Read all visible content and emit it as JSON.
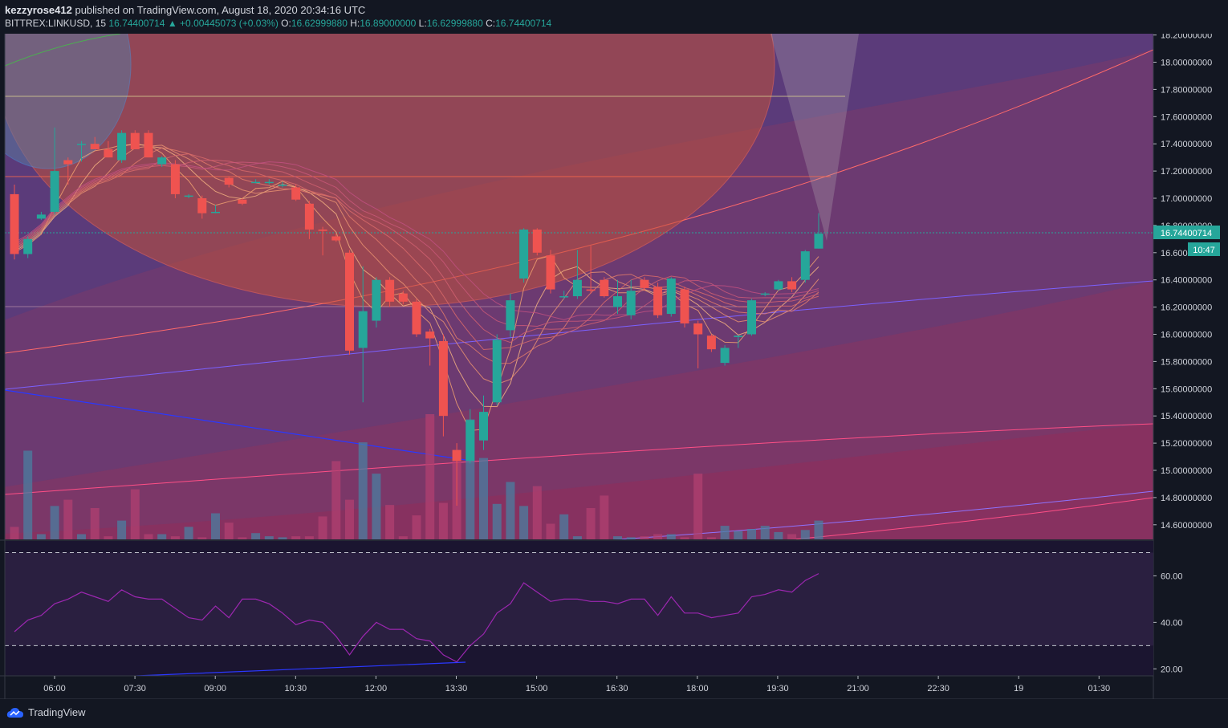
{
  "header": {
    "author": "kezzyrose412",
    "published": "published on TradingView.com, August 18, 2020 20:34:16 UTC",
    "symbol": "BITTREX:LINKUSD, 15",
    "last": "16.74400714",
    "change": "+0.00445073 (+0.03%)",
    "ohlc": {
      "o_label": "O:",
      "o": "16.62999880",
      "h_label": "H:",
      "h": "16.89000000",
      "l_label": "L:",
      "l": "16.62999880",
      "c_label": "C:",
      "c": "16.74400714"
    }
  },
  "footer": {
    "brand": "TradingView"
  },
  "colors": {
    "up": "#26a69a",
    "down": "#ef5350",
    "rsi": "#9c27b0",
    "background": "#131722"
  },
  "chart_data": [
    {
      "type": "candlestick",
      "price_axis": [
        "18.20000000",
        "18.00000000",
        "17.80000000",
        "17.60000000",
        "17.40000000",
        "17.20000000",
        "17.00000000",
        "16.80000000",
        "16.60000000",
        "16.40000000",
        "16.20000000",
        "16.00000000",
        "15.80000000",
        "15.60000000",
        "15.40000000",
        "15.20000000",
        "15.00000000",
        "14.80000000",
        "14.60000000"
      ],
      "time_axis": [
        "06:00",
        "07:30",
        "09:00",
        "10:30",
        "12:00",
        "13:30",
        "15:00",
        "16:30",
        "18:00",
        "19:30",
        "21:00",
        "22:30",
        "19",
        "01:30"
      ],
      "last_price_label": "16.74400714",
      "countdown_label": "10:47",
      "candles": [
        {
          "o": 17.03,
          "h": 17.1,
          "l": 16.55,
          "c": 16.59
        },
        {
          "o": 16.59,
          "h": 16.72,
          "l": 16.56,
          "c": 16.7
        },
        {
          "o": 16.85,
          "h": 16.9,
          "l": 16.84,
          "c": 16.88
        },
        {
          "o": 16.9,
          "h": 17.52,
          "l": 16.88,
          "c": 17.2
        },
        {
          "o": 17.28,
          "h": 17.3,
          "l": 17.1,
          "c": 17.25
        },
        {
          "o": 17.4,
          "h": 17.42,
          "l": 17.27,
          "c": 17.4
        },
        {
          "o": 17.4,
          "h": 17.45,
          "l": 17.38,
          "c": 17.36
        },
        {
          "o": 17.36,
          "h": 17.42,
          "l": 17.3,
          "c": 17.3
        },
        {
          "o": 17.28,
          "h": 17.5,
          "l": 17.26,
          "c": 17.48
        },
        {
          "o": 17.48,
          "h": 17.5,
          "l": 17.36,
          "c": 17.36
        },
        {
          "o": 17.48,
          "h": 17.5,
          "l": 17.3,
          "c": 17.3
        },
        {
          "o": 17.25,
          "h": 17.31,
          "l": 17.23,
          "c": 17.3
        },
        {
          "o": 17.25,
          "h": 17.28,
          "l": 17.0,
          "c": 17.03
        },
        {
          "o": 17.02,
          "h": 17.03,
          "l": 17.0,
          "c": 17.02
        },
        {
          "o": 17.0,
          "h": 17.02,
          "l": 16.85,
          "c": 16.89
        },
        {
          "o": 16.9,
          "h": 16.95,
          "l": 16.89,
          "c": 16.9
        },
        {
          "o": 17.15,
          "h": 17.16,
          "l": 17.08,
          "c": 17.1
        },
        {
          "o": 16.99,
          "h": 17.0,
          "l": 16.95,
          "c": 16.96
        },
        {
          "o": 17.12,
          "h": 17.14,
          "l": 17.11,
          "c": 17.12
        },
        {
          "o": 17.12,
          "h": 17.14,
          "l": 17.1,
          "c": 17.12
        },
        {
          "o": 17.1,
          "h": 17.12,
          "l": 17.08,
          "c": 17.1
        },
        {
          "o": 17.08,
          "h": 17.1,
          "l": 16.98,
          "c": 16.99
        },
        {
          "o": 16.96,
          "h": 16.98,
          "l": 16.7,
          "c": 16.77
        },
        {
          "o": 16.77,
          "h": 16.79,
          "l": 16.58,
          "c": 16.76
        },
        {
          "o": 16.72,
          "h": 16.74,
          "l": 16.68,
          "c": 16.69
        },
        {
          "o": 16.6,
          "h": 16.62,
          "l": 15.85,
          "c": 15.88
        },
        {
          "o": 15.9,
          "h": 16.5,
          "l": 15.5,
          "c": 16.17
        },
        {
          "o": 16.1,
          "h": 16.42,
          "l": 16.05,
          "c": 16.4
        },
        {
          "o": 16.4,
          "h": 16.42,
          "l": 16.2,
          "c": 16.24
        },
        {
          "o": 16.3,
          "h": 16.32,
          "l": 16.22,
          "c": 16.24
        },
        {
          "o": 16.24,
          "h": 16.26,
          "l": 15.98,
          "c": 16.0
        },
        {
          "o": 16.02,
          "h": 16.04,
          "l": 15.77,
          "c": 15.97
        },
        {
          "o": 15.95,
          "h": 16.0,
          "l": 15.25,
          "c": 15.4
        },
        {
          "o": 15.15,
          "h": 15.2,
          "l": 14.74,
          "c": 15.07
        },
        {
          "o": 15.07,
          "h": 15.45,
          "l": 15.05,
          "c": 15.37
        },
        {
          "o": 15.22,
          "h": 15.55,
          "l": 15.15,
          "c": 15.43
        },
        {
          "o": 15.5,
          "h": 16.0,
          "l": 15.48,
          "c": 15.96
        },
        {
          "o": 16.03,
          "h": 16.3,
          "l": 15.98,
          "c": 16.25
        },
        {
          "o": 16.41,
          "h": 16.78,
          "l": 16.38,
          "c": 16.77
        },
        {
          "o": 16.77,
          "h": 16.78,
          "l": 16.58,
          "c": 16.6
        },
        {
          "o": 16.58,
          "h": 16.62,
          "l": 16.3,
          "c": 16.33
        },
        {
          "o": 16.28,
          "h": 16.32,
          "l": 16.26,
          "c": 16.28
        },
        {
          "o": 16.28,
          "h": 16.62,
          "l": 16.26,
          "c": 16.4
        },
        {
          "o": 16.33,
          "h": 16.65,
          "l": 16.3,
          "c": 16.32
        },
        {
          "o": 16.4,
          "h": 16.42,
          "l": 16.27,
          "c": 16.28
        },
        {
          "o": 16.2,
          "h": 16.4,
          "l": 16.15,
          "c": 16.28
        },
        {
          "o": 16.14,
          "h": 16.4,
          "l": 16.11,
          "c": 16.32
        },
        {
          "o": 16.4,
          "h": 16.42,
          "l": 16.32,
          "c": 16.34
        },
        {
          "o": 16.35,
          "h": 16.38,
          "l": 16.12,
          "c": 16.14
        },
        {
          "o": 16.15,
          "h": 16.42,
          "l": 16.13,
          "c": 16.41
        },
        {
          "o": 16.33,
          "h": 16.35,
          "l": 16.05,
          "c": 16.08
        },
        {
          "o": 16.08,
          "h": 16.1,
          "l": 15.75,
          "c": 16.0
        },
        {
          "o": 15.99,
          "h": 16.0,
          "l": 15.87,
          "c": 15.89
        },
        {
          "o": 15.79,
          "h": 15.92,
          "l": 15.77,
          "c": 15.9
        },
        {
          "o": 15.98,
          "h": 15.99,
          "l": 15.9,
          "c": 15.99
        },
        {
          "o": 16.0,
          "h": 16.26,
          "l": 15.99,
          "c": 16.25
        },
        {
          "o": 16.3,
          "h": 16.31,
          "l": 16.28,
          "c": 16.3
        },
        {
          "o": 16.33,
          "h": 16.4,
          "l": 16.32,
          "c": 16.39
        },
        {
          "o": 16.39,
          "h": 16.42,
          "l": 16.31,
          "c": 16.33
        },
        {
          "o": 16.4,
          "h": 16.62,
          "l": 16.38,
          "c": 16.61
        },
        {
          "o": 16.63,
          "h": 16.89,
          "l": 16.63,
          "c": 16.74
        }
      ],
      "volume": [
        0.12,
        0.85,
        0.05,
        0.32,
        0.38,
        0.05,
        0.3,
        0.03,
        0.18,
        0.48,
        0.05,
        0.05,
        0.03,
        0.12,
        0.02,
        0.25,
        0.16,
        0.02,
        0.06,
        0.03,
        0.02,
        0.03,
        0.03,
        0.22,
        0.75,
        0.38,
        0.93,
        0.63,
        0.33,
        0.03,
        0.23,
        1.2,
        0.35,
        0.78,
        1.15,
        0.78,
        0.34,
        0.55,
        0.32,
        0.51,
        0.15,
        0.24,
        0.03,
        0.3,
        0.42,
        0.03,
        0.02,
        0.03,
        0.05,
        0.05,
        0.02,
        0.63,
        0.02,
        0.13,
        0.08,
        0.1,
        0.13,
        0.07,
        0.05,
        0.09,
        0.18
      ]
    },
    {
      "type": "line",
      "name": "RSI",
      "y_axis": [
        "60.00",
        "40.00",
        "20.00"
      ],
      "ylim": [
        17,
        75
      ],
      "upper_band": 70,
      "lower_band": 30,
      "values": [
        36,
        41,
        43,
        48,
        50,
        53,
        51,
        49,
        54,
        51,
        50,
        50,
        46,
        42,
        41,
        47,
        42,
        50,
        50,
        48,
        44,
        39,
        41,
        40,
        34,
        26,
        34,
        40,
        37,
        37,
        33,
        32,
        26,
        23,
        30,
        35,
        44,
        48,
        57,
        53,
        49,
        50,
        50,
        49,
        49,
        48,
        50,
        50,
        43,
        51,
        44,
        44,
        42,
        43,
        44,
        51,
        52,
        54,
        53,
        58,
        61
      ]
    }
  ]
}
